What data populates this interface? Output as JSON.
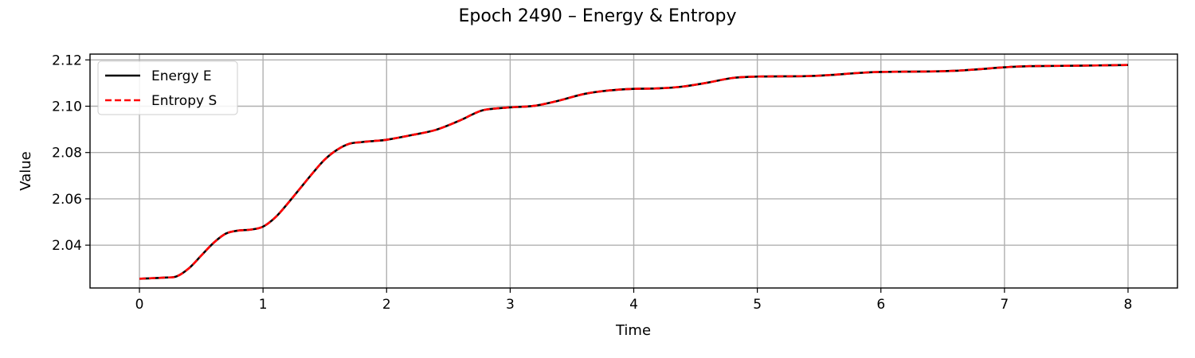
{
  "chart_data": {
    "type": "line",
    "title": "Epoch 2490 – Energy & Entropy",
    "xlabel": "Time",
    "ylabel": "Value",
    "xlim": [
      -0.4,
      8.4
    ],
    "ylim": [
      2.0215,
      2.1225
    ],
    "xticks": [
      0,
      1,
      2,
      3,
      4,
      5,
      6,
      7,
      8
    ],
    "xtick_labels": [
      "0",
      "1",
      "2",
      "3",
      "4",
      "5",
      "6",
      "7",
      "8"
    ],
    "yticks": [
      2.04,
      2.06,
      2.08,
      2.1,
      2.12
    ],
    "ytick_labels": [
      "2.04",
      "2.06",
      "2.08",
      "2.10",
      "2.12"
    ],
    "grid": true,
    "legend_position": "top-left",
    "x": [
      0,
      0.2,
      0.3,
      0.4,
      0.5,
      0.6,
      0.7,
      0.8,
      0.9,
      1.0,
      1.1,
      1.2,
      1.3,
      1.4,
      1.5,
      1.6,
      1.7,
      1.8,
      1.9,
      2.0,
      2.2,
      2.4,
      2.6,
      2.7,
      2.8,
      3.0,
      3.2,
      3.4,
      3.6,
      3.8,
      4.0,
      4.2,
      4.4,
      4.6,
      4.8,
      5.0,
      5.4,
      5.6,
      5.8,
      6.0,
      6.4,
      6.6,
      6.8,
      7.0,
      7.2,
      7.6,
      8.0
    ],
    "series": [
      {
        "name": "Energy E",
        "color": "#000000",
        "dash": "solid",
        "values": [
          2.0255,
          2.026,
          2.0265,
          2.03,
          2.0355,
          2.041,
          2.045,
          2.0463,
          2.0467,
          2.048,
          2.052,
          2.058,
          2.0645,
          2.071,
          2.077,
          2.0812,
          2.0838,
          2.0845,
          2.085,
          2.0855,
          2.0875,
          2.0898,
          2.094,
          2.0966,
          2.0985,
          2.0995,
          2.1002,
          2.1025,
          2.1053,
          2.1068,
          2.1075,
          2.1077,
          2.1085,
          2.1102,
          2.1122,
          2.1128,
          2.113,
          2.1135,
          2.1143,
          2.1148,
          2.115,
          2.1153,
          2.116,
          2.1168,
          2.1173,
          2.1175,
          2.1178
        ]
      },
      {
        "name": "Entropy S",
        "color": "#ff0000",
        "dash": "dashed",
        "values": [
          2.0255,
          2.026,
          2.0265,
          2.03,
          2.0355,
          2.041,
          2.045,
          2.0463,
          2.0467,
          2.048,
          2.052,
          2.058,
          2.0645,
          2.071,
          2.077,
          2.0812,
          2.0838,
          2.0845,
          2.085,
          2.0855,
          2.0875,
          2.0898,
          2.094,
          2.0966,
          2.0985,
          2.0995,
          2.1002,
          2.1025,
          2.1053,
          2.1068,
          2.1075,
          2.1077,
          2.1085,
          2.1102,
          2.1122,
          2.1128,
          2.113,
          2.1135,
          2.1143,
          2.1148,
          2.115,
          2.1153,
          2.116,
          2.1168,
          2.1173,
          2.1175,
          2.1178
        ]
      }
    ]
  }
}
